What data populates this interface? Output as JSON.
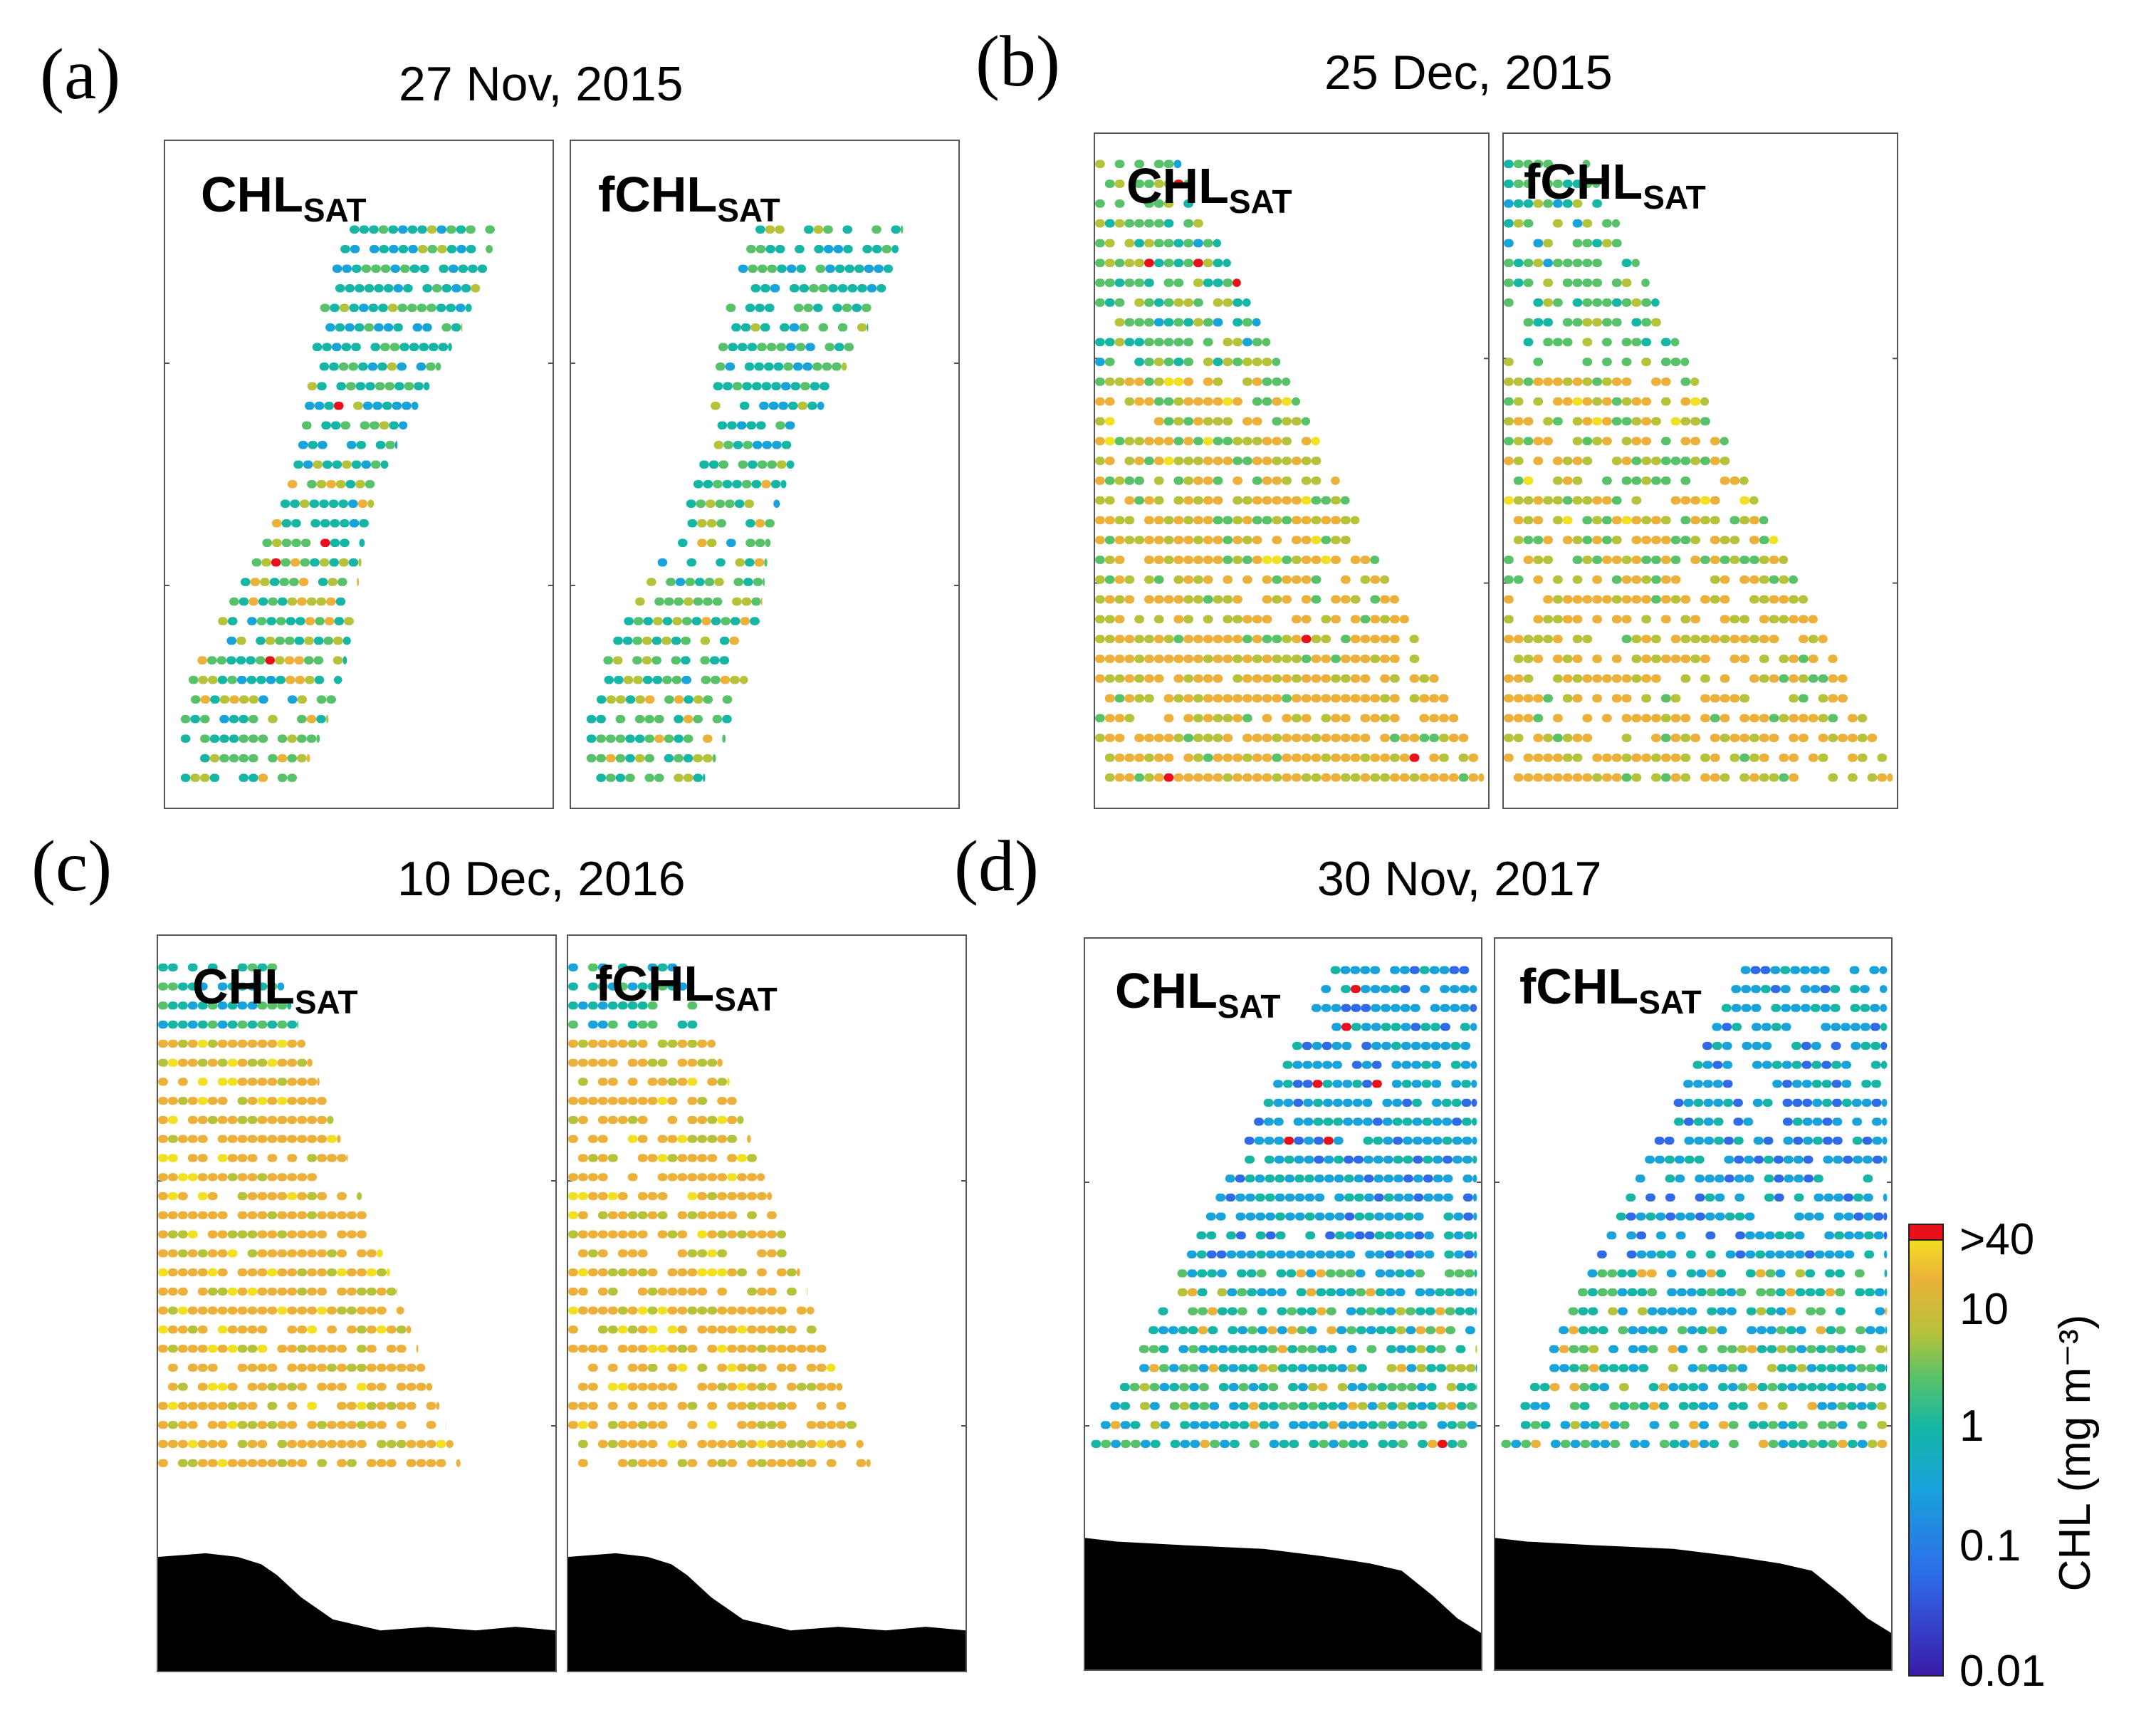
{
  "panels": [
    {
      "id": "a",
      "letter": "(a)",
      "date": "27 Nov, 2015",
      "left_label": {
        "main": "CHL",
        "sub": "SAT"
      },
      "right_label": {
        "main": "fCHL",
        "sub": "SAT"
      }
    },
    {
      "id": "b",
      "letter": "(b)",
      "date": "25 Dec, 2015",
      "left_label": {
        "main": "CHL",
        "sub": "SAT"
      },
      "right_label": {
        "main": "fCHL",
        "sub": "SAT"
      }
    },
    {
      "id": "c",
      "letter": "(c)",
      "date": "10 Dec, 2016",
      "left_label": {
        "main": "CHL",
        "sub": "SAT"
      },
      "right_label": {
        "main": "fCHL",
        "sub": "SAT"
      }
    },
    {
      "id": "d",
      "letter": "(d)",
      "date": "30 Nov, 2017",
      "left_label": {
        "main": "CHL",
        "sub": "SAT"
      },
      "right_label": {
        "main": "fCHL",
        "sub": "SAT"
      }
    }
  ],
  "colorbar": {
    "title": "CHL (mg m⁻³)",
    "ticks": [
      ">40",
      "10",
      "1",
      "0.1",
      "0.01"
    ],
    "colors": {
      "red": "#e8101a",
      "yellow": "#f2e022",
      "orange": "#ecb13a",
      "olive": "#b6c23a",
      "green": "#58c26a",
      "teal": "#16b6a6",
      "cyan": "#18a4da",
      "blue": "#2f6be8",
      "purple": "#3a1aa8"
    }
  },
  "chart_data": {
    "type": "heatmap",
    "description_variable": "CHL",
    "colorbar_scale": "log",
    "colorbar_range": [
      0.01,
      40
    ],
    "colorbar_ticks": [
      0.01,
      0.1,
      1,
      10,
      40
    ],
    "panels": [
      "27 Nov, 2015",
      "25 Dec, 2015",
      "10 Dec, 2016",
      "30 Nov, 2017"
    ],
    "fields": [
      "CHL_SAT",
      "fCHL_SAT"
    ]
  }
}
